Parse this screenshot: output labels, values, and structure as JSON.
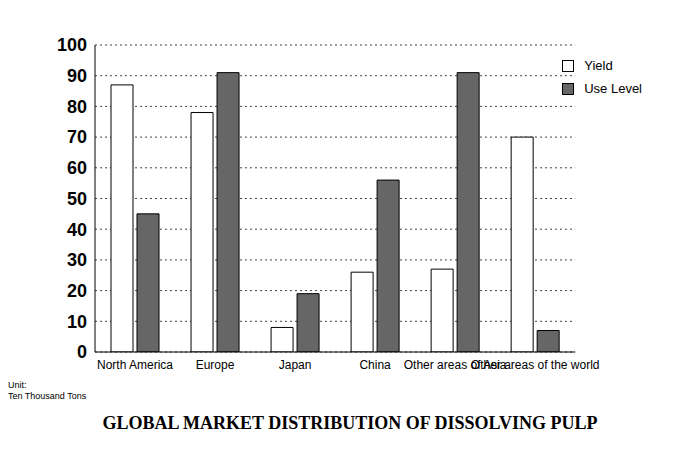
{
  "chart_data": {
    "type": "bar",
    "title": "GLOBAL MARKET DISTRIBUTION OF DISSOLVING PULP",
    "annotations": [
      "Unit:",
      "Ten Thousand Tons"
    ],
    "categories": [
      "North America",
      "Europe",
      "Japan",
      "China",
      "Other areas of Asia",
      "Other areas of the world"
    ],
    "series": [
      {
        "name": "Yield",
        "color": "#ffffff",
        "values": [
          87,
          78,
          8,
          26,
          27,
          70
        ]
      },
      {
        "name": "Use Level",
        "color": "#666666",
        "values": [
          45,
          91,
          19,
          56,
          91,
          7
        ]
      }
    ],
    "ylim": [
      0,
      100
    ],
    "yticks": [
      0,
      10,
      20,
      30,
      40,
      50,
      60,
      70,
      80,
      90,
      100
    ],
    "grid": true,
    "legend": "upper right"
  }
}
